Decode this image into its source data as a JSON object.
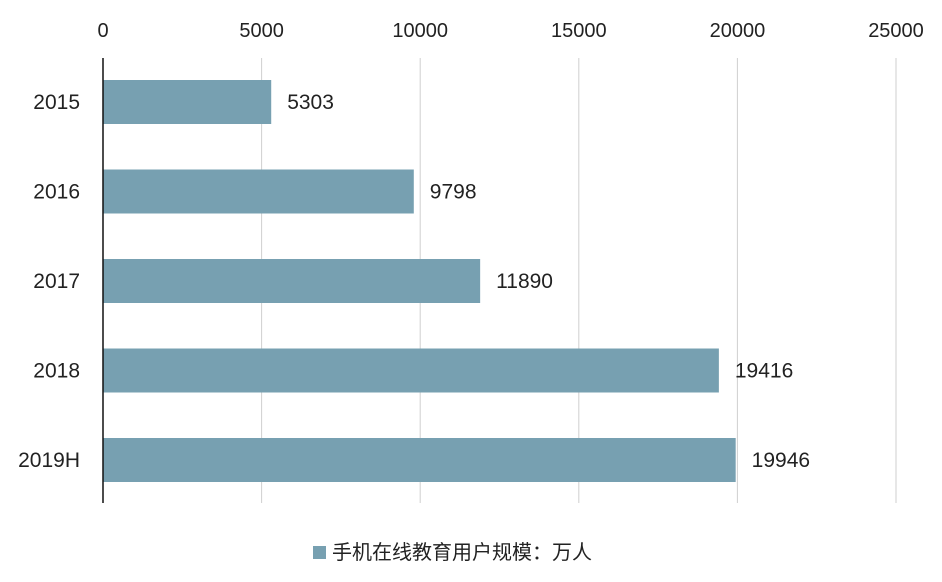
{
  "chart_data": {
    "type": "bar",
    "orientation": "horizontal",
    "categories": [
      "2015",
      "2016",
      "2017",
      "2018",
      "2019H"
    ],
    "series": [
      {
        "name": "手机在线教育用户规模：万人",
        "values": [
          5303,
          9798,
          11890,
          19416,
          19946
        ]
      }
    ],
    "xlim": [
      0,
      25000
    ],
    "x_ticks": [
      "0",
      "5000",
      "10000",
      "15000",
      "20000",
      "25000"
    ],
    "data_labels": [
      "5303",
      "9798",
      "11890",
      "19416",
      "19946"
    ],
    "x_axis_position": "top",
    "grid": true,
    "legend_position": "bottom",
    "bar_color": "#77a0b1"
  }
}
